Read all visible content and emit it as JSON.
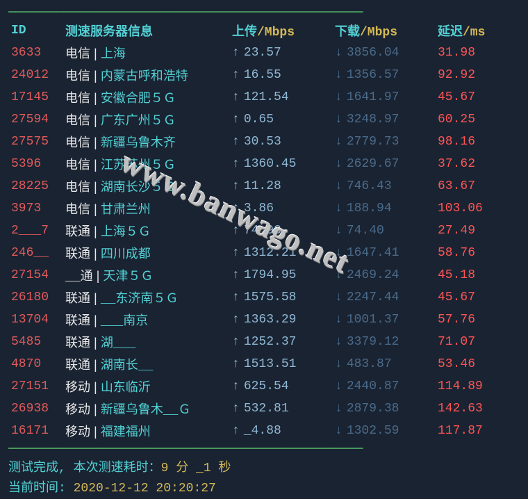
{
  "colors": {
    "background": "#1a2332",
    "header_cyan": "#52d1d4",
    "header_yellow": "#d4b956",
    "id_red": "#e05a5a",
    "white": "#e8e8e8",
    "upload_blue": "#8fb8d4",
    "download_dim": "#4a6b8a",
    "latency_red": "#ff5555",
    "rule_green": "#4a9d5f"
  },
  "headers": {
    "id": "ID",
    "server": "测速服务器信息",
    "upload": "上传",
    "upload_unit": "/Mbps",
    "download": "下载",
    "download_unit": "/Mbps",
    "latency": "延迟",
    "latency_unit": "/ms"
  },
  "rows": [
    {
      "id": "3633",
      "isp": "电信",
      "loc": "上海",
      "up": "23.57",
      "down": "3856.04",
      "lat": "31.98"
    },
    {
      "id": "24012",
      "isp": "电信",
      "loc": "内蒙古呼和浩特",
      "up": "16.55",
      "down": "1356.57",
      "lat": "92.92"
    },
    {
      "id": "17145",
      "isp": "电信",
      "loc": "安徽合肥５Ｇ",
      "up": "121.54",
      "down": "1641.97",
      "lat": "45.67"
    },
    {
      "id": "27594",
      "isp": "电信",
      "loc": "广东广州５Ｇ",
      "up": "0.65",
      "down": "3248.97",
      "lat": "60.25"
    },
    {
      "id": "27575",
      "isp": "电信",
      "loc": "新疆乌鲁木齐",
      "up": "30.53",
      "down": "2779.73",
      "lat": "98.16"
    },
    {
      "id": "5396",
      "isp": "电信",
      "loc": "江苏苏州５Ｇ",
      "up": "1360.45",
      "down": "2629.67",
      "lat": "37.62"
    },
    {
      "id": "28225",
      "isp": "电信",
      "loc": "湖南长沙５Ｇ",
      "up": "11.28",
      "down": "746.43",
      "lat": "63.67"
    },
    {
      "id": "3973",
      "isp": "电信",
      "loc": "甘肃兰州",
      "up": "3.86",
      "down": "188.94",
      "lat": "103.06"
    },
    {
      "id": "2___7",
      "isp": "联通",
      "loc": "上海５Ｇ",
      "up": "74.93",
      "down": "74.40",
      "lat": "27.49"
    },
    {
      "id": "246__",
      "isp": "联通",
      "loc": "四川成都",
      "up": "1312.21",
      "down": "1647.41",
      "lat": "58.76"
    },
    {
      "id": "27154",
      "isp": "__通",
      "loc": "天津５Ｇ",
      "up": "1794.95",
      "down": "2469.24",
      "lat": "45.18"
    },
    {
      "id": "26180",
      "isp": "联通",
      "loc": "__东济南５Ｇ",
      "up": "1575.58",
      "down": "2247.44",
      "lat": "45.67"
    },
    {
      "id": "13704",
      "isp": "联通",
      "loc": "___南京",
      "up": "1363.29",
      "down": "1001.37",
      "lat": "57.76"
    },
    {
      "id": "5485",
      "isp": "联通",
      "loc": "湖___",
      "up": "1252.37",
      "down": "3379.12",
      "lat": "71.07"
    },
    {
      "id": "4870",
      "isp": "联通",
      "loc": "湖南长__",
      "up": "1513.51",
      "down": "483.87",
      "lat": "53.46"
    },
    {
      "id": "27151",
      "isp": "移动",
      "loc": "山东临沂",
      "up": "625.54",
      "down": "2440.87",
      "lat": "114.89"
    },
    {
      "id": "26938",
      "isp": "移动",
      "loc": "新疆乌鲁木__Ｇ",
      "up": "532.81",
      "down": "2879.38",
      "lat": "142.63"
    },
    {
      "id": "16171",
      "isp": "移动",
      "loc": "福建福州",
      "up": "_4.88",
      "down": "1302.59",
      "lat": "117.87"
    }
  ],
  "footer": {
    "line1_label": "测试完成, 本次测速耗时：",
    "line1_value": "9 分 _1 秒",
    "line2_label": "当前时间: ",
    "line2_value": "2020-12-12 20:20:27"
  },
  "watermark": "www.banwago.net",
  "rule_char": "————————————————————————————————————————————————————"
}
